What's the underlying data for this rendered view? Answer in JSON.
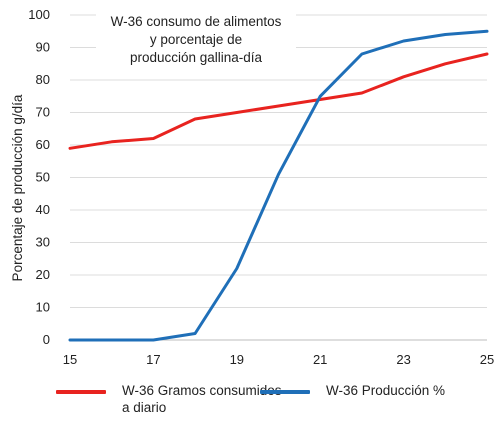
{
  "chart_data": {
    "type": "line",
    "title_lines": [
      "W-36 consumo de alimentos",
      "y porcentaje de",
      "producción gallina-día"
    ],
    "ylabel": "Porcentaje de producción g/día",
    "xlabel": "",
    "xlim": [
      15,
      25
    ],
    "ylim": [
      0,
      100
    ],
    "x_ticks": [
      "15",
      "17",
      "19",
      "21",
      "23",
      "25"
    ],
    "y_ticks": [
      "0",
      "10",
      "20",
      "30",
      "40",
      "50",
      "60",
      "70",
      "80",
      "90",
      "100"
    ],
    "grid": "horizontal",
    "legend_position": "bottom",
    "series": [
      {
        "name": "W-36 Gramos consumidos a diario",
        "legend_lines": [
          "W-36 Gramos consumidos",
          "a diario"
        ],
        "color": "#e8231f",
        "x": [
          15,
          16,
          17,
          18,
          19,
          20,
          21,
          22,
          23,
          24,
          25
        ],
        "values": [
          59,
          61,
          62,
          68,
          70,
          72,
          74,
          76,
          81,
          85,
          88
        ]
      },
      {
        "name": "W-36 Producción %",
        "legend_lines": [
          "W-36 Producción %"
        ],
        "color": "#1f6fb8",
        "x": [
          15,
          16,
          17,
          18,
          19,
          20,
          21,
          22,
          23,
          24,
          25
        ],
        "values": [
          0,
          0,
          0,
          2,
          22,
          51,
          75,
          88,
          92,
          94,
          95
        ]
      }
    ]
  }
}
